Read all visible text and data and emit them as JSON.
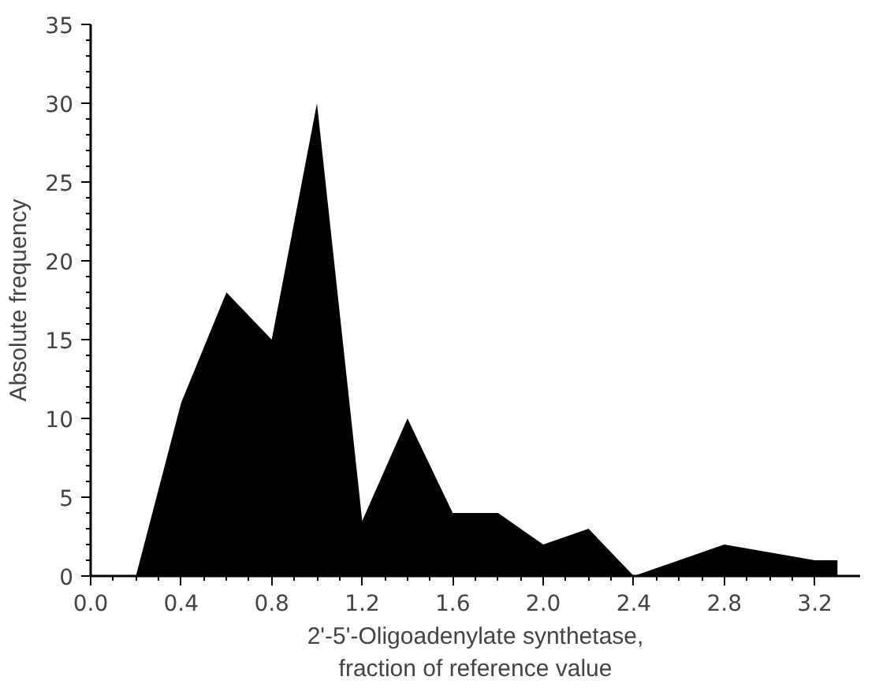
{
  "chart_data": {
    "type": "area",
    "xlabel": "2'-5'-Oligoadenylate synthetase,\nfraction of reference value",
    "ylabel": "Absolute frequency",
    "x": [
      0.0,
      0.2,
      0.4,
      0.6,
      0.8,
      1.0,
      1.2,
      1.4,
      1.6,
      1.8,
      2.0,
      2.2,
      2.4,
      2.6,
      2.8,
      3.0,
      3.2,
      3.3
    ],
    "series": [
      {
        "color": "#000000",
        "values": [
          0,
          0,
          11,
          18,
          15,
          30,
          3.5,
          10,
          4,
          4,
          2,
          3,
          0,
          1,
          2,
          1.5,
          1,
          1
        ]
      }
    ],
    "xlim": [
      0,
      3.4
    ],
    "ylim": [
      0,
      35
    ],
    "xticks": [
      {
        "value": 0,
        "label": "0.0"
      },
      0.4,
      0.8,
      1.2,
      1.6,
      {
        "value": 2,
        "label": "2.0"
      },
      2.4,
      2.8,
      3.2
    ],
    "yticks": [
      0,
      5,
      10,
      15,
      20,
      25,
      30,
      35
    ],
    "grid": false
  }
}
